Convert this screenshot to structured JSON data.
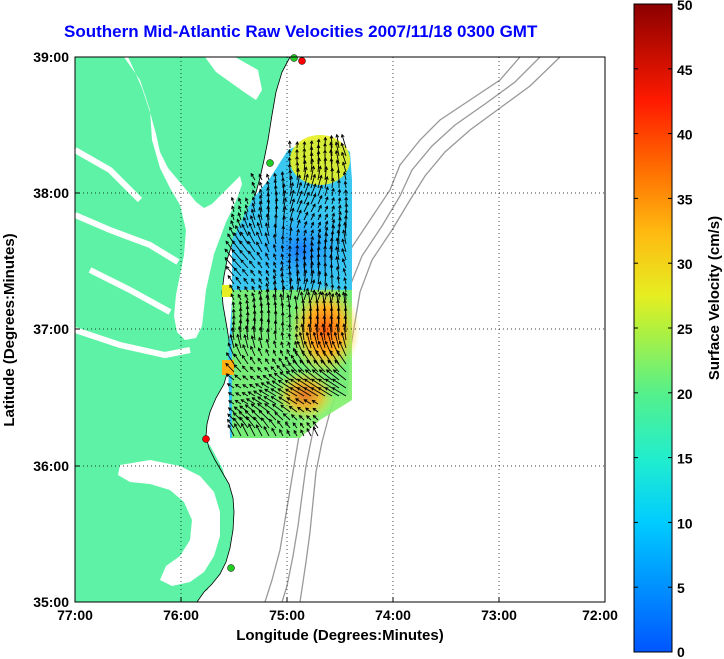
{
  "title": "Southern Mid-Atlantic Raw Velocities 2007/11/18 0300 GMT",
  "map": {
    "x_axis": {
      "label": "Longitude (Degrees:Minutes)",
      "ticks": [
        "77:00",
        "76:00",
        "75:00",
        "74:00",
        "73:00",
        "72:00"
      ]
    },
    "y_axis": {
      "label": "Latitude (Degrees:Minutes)",
      "ticks": [
        "39:00",
        "38:00",
        "37:00",
        "36:00",
        "35:00"
      ]
    },
    "colorbar": {
      "label": "Surface Velocity (cm/s)",
      "ticks": [
        "50",
        "45",
        "40",
        "35",
        "30",
        "25",
        "20",
        "15",
        "10",
        "5",
        "0"
      ],
      "range": [
        0,
        50
      ]
    },
    "colors": {
      "land": "#5ef2a6",
      "water": "#ffffff",
      "title": "#0000ff",
      "bathymetry": "#999999",
      "site_red": "#ff0000",
      "site_green": "#22cc22"
    },
    "grid": true,
    "lon_range": [
      -77,
      -72
    ],
    "lat_range": [
      35,
      39
    ]
  }
}
